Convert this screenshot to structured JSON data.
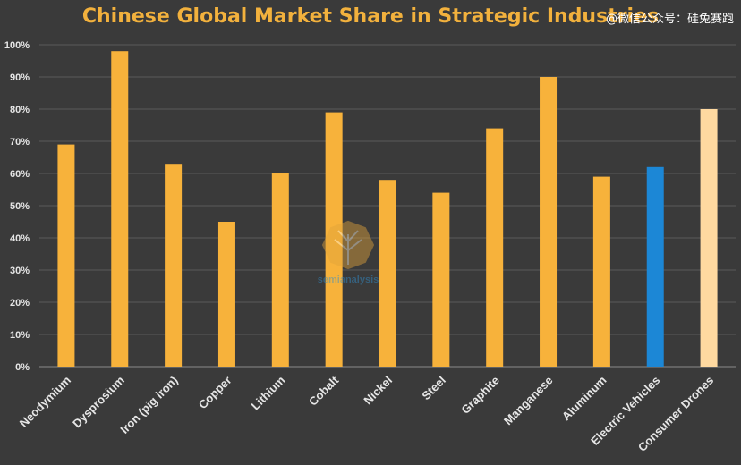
{
  "chart_data": {
    "type": "bar",
    "title": "Chinese Global Market Share in Strategic Industries",
    "xlabel": "",
    "ylabel": "",
    "ylim": [
      0,
      100
    ],
    "yticks": [
      "0%",
      "10%",
      "20%",
      "30%",
      "40%",
      "50%",
      "60%",
      "70%",
      "80%",
      "90%",
      "100%"
    ],
    "grid": true,
    "categories": [
      "Neodymium",
      "Dysprosium",
      "Iron (pig iron)",
      "Copper",
      "Lithium",
      "Cobalt",
      "Nickel",
      "Steel",
      "Graphite",
      "Manganese",
      "Aluminum",
      "Electric Vehicles",
      "Consumer Drones"
    ],
    "values": [
      69,
      98,
      63,
      45,
      60,
      79,
      58,
      54,
      74,
      90,
      59,
      62,
      80
    ],
    "bar_colors": [
      "#f7b23b",
      "#f7b23b",
      "#f7b23b",
      "#f7b23b",
      "#f7b23b",
      "#f7b23b",
      "#f7b23b",
      "#f7b23b",
      "#f7b23b",
      "#f7b23b",
      "#f7b23b",
      "#1c87d6",
      "#ffd9a0"
    ]
  },
  "watermark": {
    "text": "@微信公众号：硅兔赛跑",
    "logo_text": "semianalysis",
    "logo_icon": "tree-hexagon-icon"
  },
  "colors": {
    "background": "#3a3a3a",
    "title": "#f2b13d",
    "bar_default": "#f7b23b",
    "bar_highlight": "#1c87d6",
    "bar_light": "#ffd9a0"
  }
}
